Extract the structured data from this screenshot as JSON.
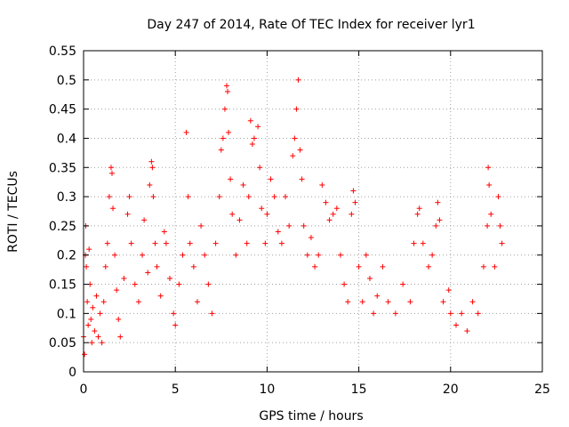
{
  "chart_data": {
    "type": "scatter",
    "title": "Day 247 of 2014, Rate Of TEC Index for receiver lyr1",
    "xlabel": "GPS time / hours",
    "ylabel": "ROTI / TECUs",
    "xlim": [
      0,
      25
    ],
    "ylim": [
      0,
      0.55
    ],
    "x_ticks": [
      "0",
      "5",
      "10",
      "15",
      "20",
      "25"
    ],
    "y_ticks": [
      "0",
      "0.05",
      "0.1",
      "0.15",
      "0.2",
      "0.25",
      "0.3",
      "0.35",
      "0.4",
      "0.45",
      "0.5",
      "0.55"
    ],
    "grid": true,
    "marker": "plus",
    "series_color": "#ff0000",
    "series": [
      {
        "values_note_x_hours_y_tecu": true,
        "points": [
          [
            0.0,
            0.06
          ],
          [
            0.05,
            0.03
          ],
          [
            0.1,
            0.2
          ],
          [
            0.12,
            0.25
          ],
          [
            0.15,
            0.18
          ],
          [
            0.2,
            0.12
          ],
          [
            0.25,
            0.08
          ],
          [
            0.3,
            0.21
          ],
          [
            0.35,
            0.15
          ],
          [
            0.4,
            0.09
          ],
          [
            0.45,
            0.05
          ],
          [
            0.5,
            0.11
          ],
          [
            0.6,
            0.07
          ],
          [
            0.7,
            0.13
          ],
          [
            0.8,
            0.06
          ],
          [
            0.9,
            0.1
          ],
          [
            1.0,
            0.05
          ],
          [
            1.1,
            0.12
          ],
          [
            1.2,
            0.18
          ],
          [
            1.3,
            0.22
          ],
          [
            1.4,
            0.3
          ],
          [
            1.5,
            0.35
          ],
          [
            1.55,
            0.34
          ],
          [
            1.6,
            0.28
          ],
          [
            1.7,
            0.2
          ],
          [
            1.8,
            0.14
          ],
          [
            1.9,
            0.09
          ],
          [
            2.0,
            0.06
          ],
          [
            2.2,
            0.16
          ],
          [
            2.4,
            0.27
          ],
          [
            2.5,
            0.3
          ],
          [
            2.6,
            0.22
          ],
          [
            2.8,
            0.15
          ],
          [
            3.0,
            0.12
          ],
          [
            3.2,
            0.2
          ],
          [
            3.3,
            0.26
          ],
          [
            3.5,
            0.17
          ],
          [
            3.6,
            0.32
          ],
          [
            3.7,
            0.36
          ],
          [
            3.75,
            0.35
          ],
          [
            3.8,
            0.3
          ],
          [
            3.9,
            0.22
          ],
          [
            4.0,
            0.18
          ],
          [
            4.2,
            0.13
          ],
          [
            4.4,
            0.24
          ],
          [
            4.5,
            0.22
          ],
          [
            4.7,
            0.16
          ],
          [
            4.9,
            0.1
          ],
          [
            5.0,
            0.08
          ],
          [
            5.2,
            0.15
          ],
          [
            5.4,
            0.2
          ],
          [
            5.6,
            0.41
          ],
          [
            5.7,
            0.3
          ],
          [
            5.8,
            0.22
          ],
          [
            6.0,
            0.18
          ],
          [
            6.2,
            0.12
          ],
          [
            6.4,
            0.25
          ],
          [
            6.6,
            0.2
          ],
          [
            6.8,
            0.15
          ],
          [
            7.0,
            0.1
          ],
          [
            7.2,
            0.22
          ],
          [
            7.4,
            0.3
          ],
          [
            7.5,
            0.38
          ],
          [
            7.6,
            0.4
          ],
          [
            7.7,
            0.45
          ],
          [
            7.8,
            0.49
          ],
          [
            7.85,
            0.48
          ],
          [
            7.9,
            0.41
          ],
          [
            8.0,
            0.33
          ],
          [
            8.1,
            0.27
          ],
          [
            8.3,
            0.2
          ],
          [
            8.5,
            0.26
          ],
          [
            8.7,
            0.32
          ],
          [
            8.9,
            0.22
          ],
          [
            9.0,
            0.3
          ],
          [
            9.1,
            0.43
          ],
          [
            9.2,
            0.39
          ],
          [
            9.3,
            0.4
          ],
          [
            9.5,
            0.42
          ],
          [
            9.6,
            0.35
          ],
          [
            9.7,
            0.28
          ],
          [
            9.9,
            0.22
          ],
          [
            10.0,
            0.27
          ],
          [
            10.2,
            0.33
          ],
          [
            10.4,
            0.3
          ],
          [
            10.6,
            0.24
          ],
          [
            10.8,
            0.22
          ],
          [
            11.0,
            0.3
          ],
          [
            11.2,
            0.25
          ],
          [
            11.4,
            0.37
          ],
          [
            11.5,
            0.4
          ],
          [
            11.6,
            0.45
          ],
          [
            11.7,
            0.5
          ],
          [
            11.8,
            0.38
          ],
          [
            11.9,
            0.33
          ],
          [
            12.0,
            0.25
          ],
          [
            12.2,
            0.2
          ],
          [
            12.4,
            0.23
          ],
          [
            12.6,
            0.18
          ],
          [
            12.8,
            0.2
          ],
          [
            13.0,
            0.32
          ],
          [
            13.2,
            0.29
          ],
          [
            13.4,
            0.26
          ],
          [
            13.6,
            0.27
          ],
          [
            13.8,
            0.28
          ],
          [
            14.0,
            0.2
          ],
          [
            14.2,
            0.15
          ],
          [
            14.4,
            0.12
          ],
          [
            14.6,
            0.27
          ],
          [
            14.7,
            0.31
          ],
          [
            14.8,
            0.29
          ],
          [
            15.0,
            0.18
          ],
          [
            15.2,
            0.12
          ],
          [
            15.4,
            0.2
          ],
          [
            15.6,
            0.16
          ],
          [
            15.8,
            0.1
          ],
          [
            16.0,
            0.13
          ],
          [
            16.3,
            0.18
          ],
          [
            16.6,
            0.12
          ],
          [
            17.0,
            0.1
          ],
          [
            17.4,
            0.15
          ],
          [
            17.8,
            0.12
          ],
          [
            18.0,
            0.22
          ],
          [
            18.2,
            0.27
          ],
          [
            18.3,
            0.28
          ],
          [
            18.5,
            0.22
          ],
          [
            18.8,
            0.18
          ],
          [
            19.0,
            0.2
          ],
          [
            19.2,
            0.25
          ],
          [
            19.3,
            0.29
          ],
          [
            19.4,
            0.26
          ],
          [
            19.6,
            0.12
          ],
          [
            19.9,
            0.14
          ],
          [
            20.0,
            0.1
          ],
          [
            20.3,
            0.08
          ],
          [
            20.6,
            0.1
          ],
          [
            20.9,
            0.07
          ],
          [
            21.2,
            0.12
          ],
          [
            21.5,
            0.1
          ],
          [
            21.8,
            0.18
          ],
          [
            22.0,
            0.25
          ],
          [
            22.05,
            0.35
          ],
          [
            22.1,
            0.32
          ],
          [
            22.2,
            0.27
          ],
          [
            22.4,
            0.18
          ],
          [
            22.6,
            0.3
          ],
          [
            22.7,
            0.25
          ],
          [
            22.8,
            0.22
          ]
        ]
      }
    ]
  }
}
